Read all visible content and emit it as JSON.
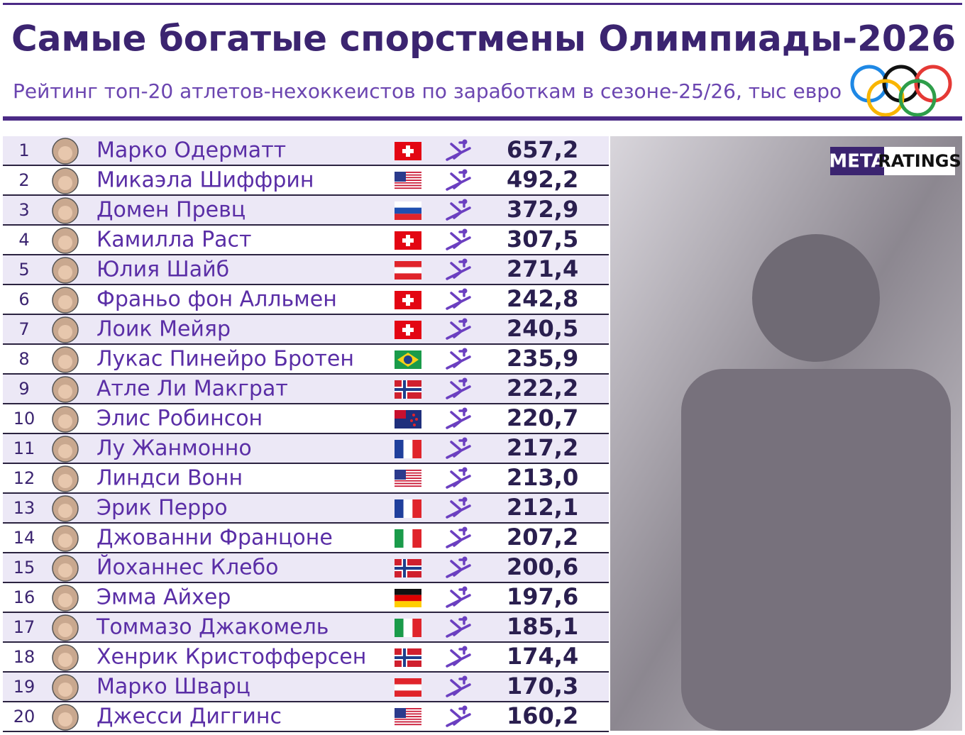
{
  "header": {
    "title": "Самые богатые спорстмены Олимпиады-2026",
    "subtitle": "Рейтинг топ-20 атлетов-нехоккеистов по заработкам в сезоне-25/26, тыс евро"
  },
  "logo": {
    "left": "META",
    "right": "RATINGS"
  },
  "table": {
    "rows": [
      [
        "1",
        "Марко Одерматт",
        "657,2"
      ],
      [
        "2",
        "Микаэла Шиффрин",
        "492,2"
      ],
      [
        "3",
        "Домен Превц",
        "372,9"
      ],
      [
        "4",
        "Камилла Раст",
        "307,5"
      ],
      [
        "5",
        "Юлия Шайб",
        "271,4"
      ],
      [
        "6",
        "Франьо фон Алльмен",
        "242,8"
      ],
      [
        "7",
        "Лоик Мейяр",
        "240,5"
      ],
      [
        "8",
        "Лукас Пинейро Бротен",
        "235,9"
      ],
      [
        "9",
        "Атле Ли Макграт",
        "222,2"
      ],
      [
        "10",
        "Элис Робинсон",
        "220,7"
      ],
      [
        "11",
        "Лу Жанмонно",
        "217,2"
      ],
      [
        "12",
        "Линдси Вонн",
        "213,0"
      ],
      [
        "13",
        "Эрик Перро",
        "212,1"
      ],
      [
        "14",
        "Джованни Францоне",
        "207,2"
      ],
      [
        "15",
        "Йоханнес Клебо",
        "200,6"
      ],
      [
        "16",
        "Эмма Айхер",
        "197,6"
      ],
      [
        "17",
        "Томмазо Джакомель",
        "185,1"
      ],
      [
        "18",
        "Хенрик Кристофферсен",
        "174,4"
      ],
      [
        "19",
        "Марко Шварц",
        "170,3"
      ],
      [
        "20",
        "Джесси Диггинс",
        "160,2"
      ]
    ]
  }
}
